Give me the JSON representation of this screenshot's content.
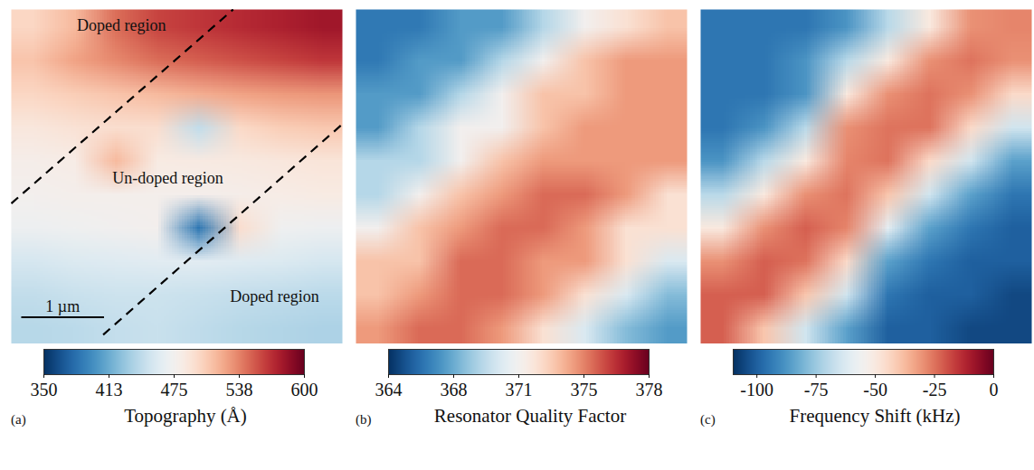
{
  "chart_data": [
    {
      "type": "heatmap",
      "panel": "(a)",
      "title": "Topography (Å)",
      "color": "rdbu",
      "xlim": [
        0,
        4
      ],
      "ylim": [
        0,
        4
      ],
      "tick_labels": false,
      "cells": [
        [
          500,
          515,
          545,
          560,
          565,
          570,
          575,
          580
        ],
        [
          510,
          525,
          535,
          545,
          550,
          555,
          560,
          565
        ],
        [
          500,
          505,
          510,
          515,
          520,
          525,
          528,
          530
        ],
        [
          488,
          492,
          495,
          495,
          445,
          498,
          505,
          508
        ],
        [
          480,
          482,
          515,
          484,
          485,
          486,
          488,
          490
        ],
        [
          476,
          478,
          478,
          478,
          478,
          480,
          482,
          484
        ],
        [
          470,
          472,
          474,
          476,
          385,
          495,
          472,
          470
        ],
        [
          455,
          458,
          460,
          462,
          462,
          460,
          458,
          455
        ],
        [
          445,
          448,
          450,
          450,
          448,
          446,
          444,
          442
        ],
        [
          440,
          442,
          446,
          448,
          444,
          440,
          438,
          436
        ]
      ],
      "colorbar": {
        "range": [
          350,
          600
        ],
        "ticks": [
          350,
          {
            "value": 412.5,
            "label": "413"
          },
          475,
          {
            "value": 537.5,
            "label": "538"
          },
          600
        ]
      },
      "lines": [
        [
          [
            0,
            2.32
          ],
          [
            2.68,
            0
          ]
        ],
        [
          [
            1.11,
            3.89
          ],
          [
            3.99,
            1.38
          ]
        ]
      ],
      "line_style": "dashed",
      "annotations": [
        {
          "text": "Doped region",
          "x": 1.33,
          "y": 0.19
        },
        {
          "text": "Un-doped region",
          "x": 1.89,
          "y": 2.02
        },
        {
          "text": "Doped region",
          "x": 3.18,
          "y": 3.43
        }
      ],
      "scale_bar": {
        "label": "1 µm",
        "length": 1
      }
    },
    {
      "type": "heatmap",
      "panel": "(b)",
      "title": "Resonator Quality Factor",
      "color": "rdbu",
      "xlim": [
        0,
        4
      ],
      "ylim": [
        0,
        4
      ],
      "tick_labels": false,
      "cells": [
        [
          366,
          366,
          367,
          367,
          369,
          371,
          372,
          373
        ],
        [
          366,
          367,
          367,
          369,
          371,
          373,
          374,
          374
        ],
        [
          367,
          367,
          369,
          371,
          373,
          373,
          374,
          374
        ],
        [
          367,
          369,
          371,
          371,
          373,
          374,
          374,
          374
        ],
        [
          369,
          369,
          371,
          373,
          374,
          374,
          374,
          374
        ],
        [
          369,
          371,
          373,
          374,
          375,
          375,
          374,
          372
        ],
        [
          371,
          373,
          374,
          375,
          375,
          374,
          372,
          372
        ],
        [
          373,
          373,
          375,
          375,
          374,
          374,
          372,
          370
        ],
        [
          373,
          374,
          375,
          375,
          374,
          372,
          370,
          368
        ],
        [
          374,
          375,
          375,
          374,
          372,
          370,
          368,
          367
        ]
      ],
      "colorbar": {
        "range": [
          364,
          378
        ],
        "ticks": [
          364,
          {
            "value": 367.5,
            "label": "368"
          },
          371,
          {
            "value": 374.5,
            "label": "375"
          },
          378
        ]
      }
    },
    {
      "type": "heatmap",
      "panel": "(c)",
      "title": "Frequency Shift (kHz)",
      "color": "rdbu",
      "xlim": [
        0,
        4
      ],
      "ylim": [
        0,
        4
      ],
      "tick_labels": false,
      "cells": [
        [
          -95,
          -95,
          -95,
          -88,
          -70,
          -50,
          -30,
          -28
        ],
        [
          -95,
          -95,
          -88,
          -70,
          -50,
          -30,
          -25,
          -30
        ],
        [
          -95,
          -95,
          -88,
          -50,
          -30,
          -25,
          -30,
          -45
        ],
        [
          -95,
          -88,
          -70,
          -30,
          -25,
          -25,
          -45,
          -65
        ],
        [
          -88,
          -70,
          -50,
          -28,
          -25,
          -45,
          -65,
          -85
        ],
        [
          -70,
          -50,
          -30,
          -25,
          -40,
          -65,
          -85,
          -95
        ],
        [
          -50,
          -30,
          -22,
          -28,
          -60,
          -85,
          -95,
          -100
        ],
        [
          -30,
          -22,
          -25,
          -45,
          -85,
          -95,
          -100,
          -100
        ],
        [
          -22,
          -22,
          -40,
          -65,
          -95,
          -100,
          -100,
          -105
        ],
        [
          -22,
          -40,
          -65,
          -85,
          -100,
          -100,
          -105,
          -105
        ]
      ],
      "colorbar": {
        "range": [
          -110,
          0
        ],
        "ticks": [
          -100,
          -75,
          -50,
          -25,
          0
        ]
      }
    }
  ]
}
